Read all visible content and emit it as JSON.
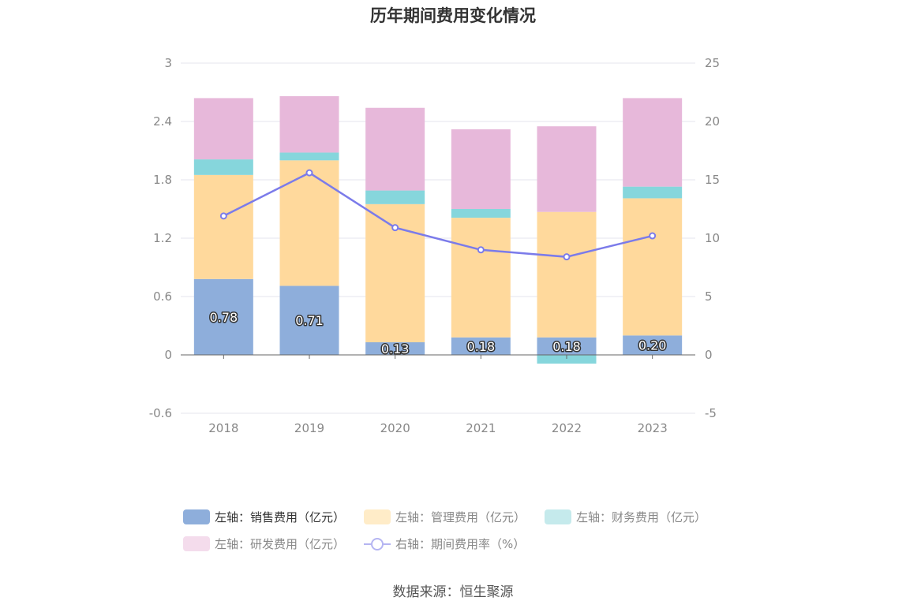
{
  "colors": {
    "sales": "#8eaedb",
    "admin": "#ffd99c",
    "finance": "#86d6dc",
    "rd": "#e7b8da",
    "rate": "#7b7bea",
    "axis": "#666666",
    "grid": "#e6e6ee",
    "tick_text": "#888888",
    "legend_text_active": "#333333",
    "legend_text_inactive": "#888888",
    "legend_sales": "#8eaedb",
    "legend_admin": "#ffecc8",
    "legend_finance": "#c5eaec",
    "legend_rd": "#f4dcec",
    "legend_rate": "#b5b5f2"
  },
  "chart_data": {
    "type": "bar",
    "stacked": true,
    "title": "历年期间费用变化情况",
    "categories": [
      "2018",
      "2019",
      "2020",
      "2021",
      "2022",
      "2023"
    ],
    "left_axis": {
      "ticks": [
        "3",
        "2.4",
        "1.8",
        "1.2",
        "0.6",
        "0",
        "-0.6"
      ],
      "ylim": [
        -0.6,
        3
      ]
    },
    "right_axis": {
      "ticks": [
        "25",
        "20",
        "15",
        "10",
        "5",
        "0",
        "-5"
      ],
      "ylim": [
        -5,
        25
      ]
    },
    "series": [
      {
        "name": "左轴：销售费用（亿元）",
        "axis": "left",
        "values": [
          0.78,
          0.71,
          0.13,
          0.18,
          0.18,
          0.2
        ],
        "labels": [
          "0.78",
          "0.71",
          "0.13",
          "0.18",
          "0.18",
          "0.20"
        ]
      },
      {
        "name": "左轴：管理费用（亿元）",
        "axis": "left",
        "values": [
          1.07,
          1.29,
          1.42,
          1.23,
          1.29,
          1.41
        ]
      },
      {
        "name": "左轴：财务费用（亿元）",
        "axis": "left",
        "values": [
          0.16,
          0.08,
          0.14,
          0.09,
          -0.09,
          0.12
        ]
      },
      {
        "name": "左轴：研发费用（亿元）",
        "axis": "left",
        "values": [
          0.63,
          0.58,
          0.85,
          0.82,
          0.88,
          0.91
        ]
      },
      {
        "name": "右轴：期间费用率（%）",
        "axis": "right",
        "type": "line",
        "values": [
          11.9,
          15.6,
          10.9,
          9.0,
          8.4,
          10.2
        ]
      }
    ]
  },
  "source": "数据来源：恒生聚源"
}
